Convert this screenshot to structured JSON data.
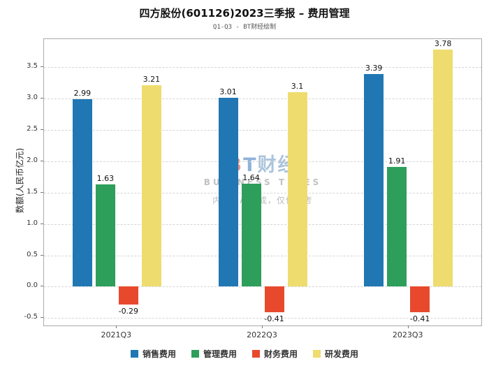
{
  "header": {
    "title": "四方股份(601126)2023三季报 – 费用管理",
    "subtitle": "Q1-Q3 - BT财经绘制"
  },
  "chart_data": {
    "type": "bar",
    "title": "四方股份(601126)2023三季报 – 费用管理",
    "subtitle": "Q1-Q3 - BT财经绘制",
    "categories": [
      "2021Q3",
      "2022Q3",
      "2023Q3"
    ],
    "series": [
      {
        "name": "销售费用",
        "color": "#2077B4",
        "values": [
          2.99,
          3.01,
          3.39
        ]
      },
      {
        "name": "管理费用",
        "color": "#2E9E5B",
        "values": [
          1.63,
          1.64,
          1.91
        ]
      },
      {
        "name": "财务费用",
        "color": "#E8492D",
        "values": [
          -0.29,
          -0.41,
          -0.41
        ]
      },
      {
        "name": "研发费用",
        "color": "#EEDC6E",
        "values": [
          3.21,
          3.1,
          3.78
        ]
      }
    ],
    "xlabel": "",
    "ylabel": "数额(人民币亿元)",
    "ylim": [
      -0.62,
      3.95
    ],
    "yticks": [
      -0.5,
      0.0,
      0.5,
      1.0,
      1.5,
      2.0,
      2.5,
      3.0,
      3.5
    ],
    "grid": true,
    "grid_style": "dashed-horizontal",
    "legend_position": "bottom",
    "bar_value_labels": true
  },
  "watermark": {
    "logo_b": "B",
    "logo_t": "T",
    "brand_cn": "财经",
    "brand_en": "BUSINESS TIMES",
    "disclaimer": "内容由AI生成，仅供参考"
  }
}
